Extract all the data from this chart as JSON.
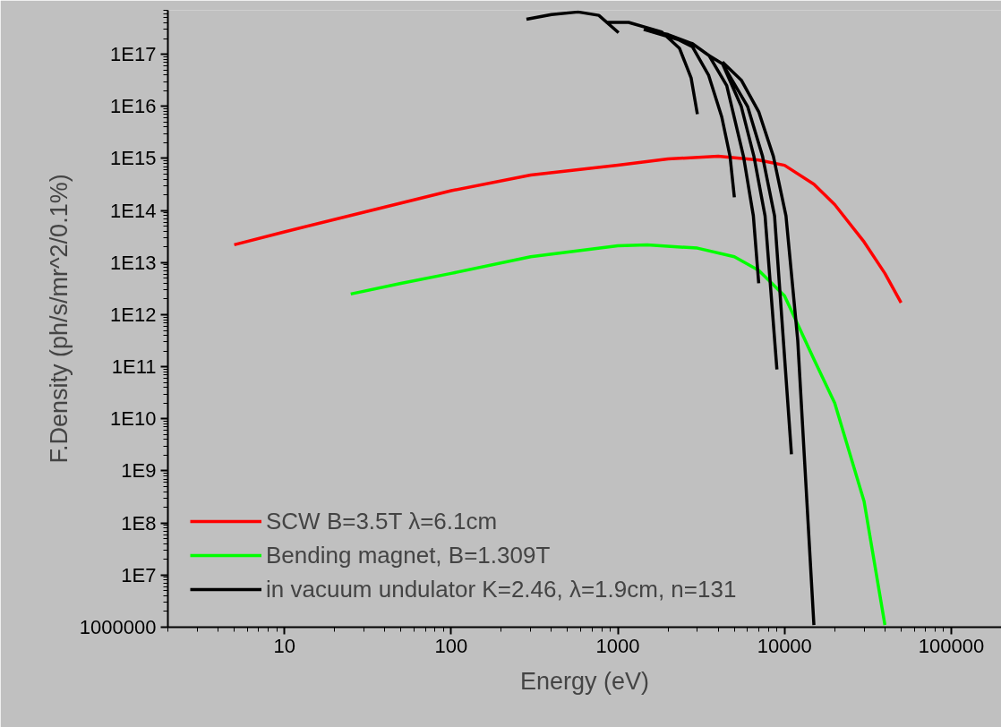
{
  "chart_data": {
    "type": "line",
    "xlabel": "Energy (eV)",
    "ylabel": "F.Density (ph/s/mr^2/0.1%)",
    "log": "xy",
    "grid": false,
    "legend": "bottom left",
    "line_style": "solid",
    "marker": "none",
    "xlim": [
      2,
      200000
    ],
    "xticks": [
      10,
      100,
      1000,
      10000,
      100000
    ],
    "ylim": [
      1000000,
      7e+17
    ],
    "yticks": [
      1000000,
      {
        "value": 10000000.0,
        "label": "1E7"
      },
      {
        "value": 100000000.0,
        "label": "1E8"
      },
      {
        "value": 1000000000.0,
        "label": "1E9"
      },
      {
        "value": 10000000000.0,
        "label": "1E10"
      },
      {
        "value": 100000000000.0,
        "label": "1E11"
      },
      {
        "value": 1000000000000.0,
        "label": "1E12"
      },
      {
        "value": 10000000000000.0,
        "label": "1E13"
      },
      {
        "value": 100000000000000.0,
        "label": "1E14"
      },
      {
        "value": 1000000000000000.0,
        "label": "1E15"
      },
      {
        "value": 1e+16,
        "label": "1E16"
      },
      {
        "value": 1e+17,
        "label": "1E17"
      }
    ],
    "series": [
      {
        "name": "SCW B=3.5T λ=6.1cm",
        "color": "#ff0000",
        "x": [
          5,
          10,
          30,
          100,
          300,
          1000,
          2000,
          4000,
          7000,
          10000,
          15000,
          20000,
          30000,
          40000,
          50000
        ],
        "values": [
          22000000000000.0,
          39000000000000.0,
          93000000000000.0,
          240000000000000.0,
          480000000000000.0,
          740000000000000.0,
          980000000000000.0,
          1100000000000000.0,
          930000000000000.0,
          740000000000000.0,
          320000000000000.0,
          130000000000000.0,
          25000000000000.0,
          6200000000000.0,
          1700000000000.0
        ]
      },
      {
        "name": "Bending magnet, B=1.309T",
        "color": "#00ff00",
        "x": [
          25,
          50,
          100,
          300,
          1000,
          1500,
          3000,
          5000,
          7000,
          10000,
          15000,
          20000,
          30000,
          40000
        ],
        "values": [
          2500000000000.0,
          4000000000000.0,
          6200000000000.0,
          13000000000000.0,
          21000000000000.0,
          22000000000000.0,
          19000000000000.0,
          13000000000000.0,
          7100000000000.0,
          2300000000000.0,
          140000000000.0,
          20000000000.0,
          260000000.0,
          1100000.0
        ]
      },
      {
        "name": "in vacuum undulator K=2.46, λ=1.9cm, n=131",
        "color": "#000000",
        "x": [
          283,
          400,
          578,
          769,
          1010,
          null,
          849,
          1160,
          1829,
          2345,
          2753,
          3000,
          null,
          1430,
          2000,
          2800,
          3500,
          4200,
          4710,
          5000,
          null,
          1430,
          2000,
          2800,
          3520,
          4500,
          5670,
          6500,
          7000,
          null,
          1430,
          2000,
          2800,
          3520,
          4240,
          5500,
          6550,
          7640,
          9000,
          null,
          1430,
          2800,
          3520,
          4240,
          6000,
          7380,
          8710,
          11000,
          null,
          4240,
          5500,
          7000,
          8570,
          10200,
          12000,
          15000
        ],
        "values": [
          4.7e+17,
          5.8e+17,
          6.5e+17,
          5.6e+17,
          2.6e+17,
          null,
          4.1e+17,
          4.1e+17,
          2.7e+17,
          1.3e+17,
          3.5e+16,
          7100000000000000.0,
          null,
          3e+17,
          2.4e+17,
          1.4e+17,
          4e+16,
          6300000000000000.0,
          1100000000000000.0,
          180000000000000.0,
          null,
          3e+17,
          2.4e+17,
          1.6e+17,
          9.5e+16,
          2.5e+16,
          1100000000000000.0,
          79000000000000.0,
          4000000000000.0,
          null,
          3e+17,
          2.4e+17,
          1.6e+17,
          9.5e+16,
          6.6e+16,
          1e+16,
          1100000000000000.0,
          79000000000000.0,
          89000000000.0,
          null,
          3e+17,
          1.6e+17,
          9.5e+16,
          6.6e+16,
          1e+16,
          1100000000000000.0,
          79000000000000.0,
          2100000000.0,
          null,
          7.1e+16,
          3.2e+16,
          7900000000000000.0,
          1100000000000000.0,
          79000000000000.0,
          320000000000.0,
          1100000.0
        ]
      }
    ]
  }
}
